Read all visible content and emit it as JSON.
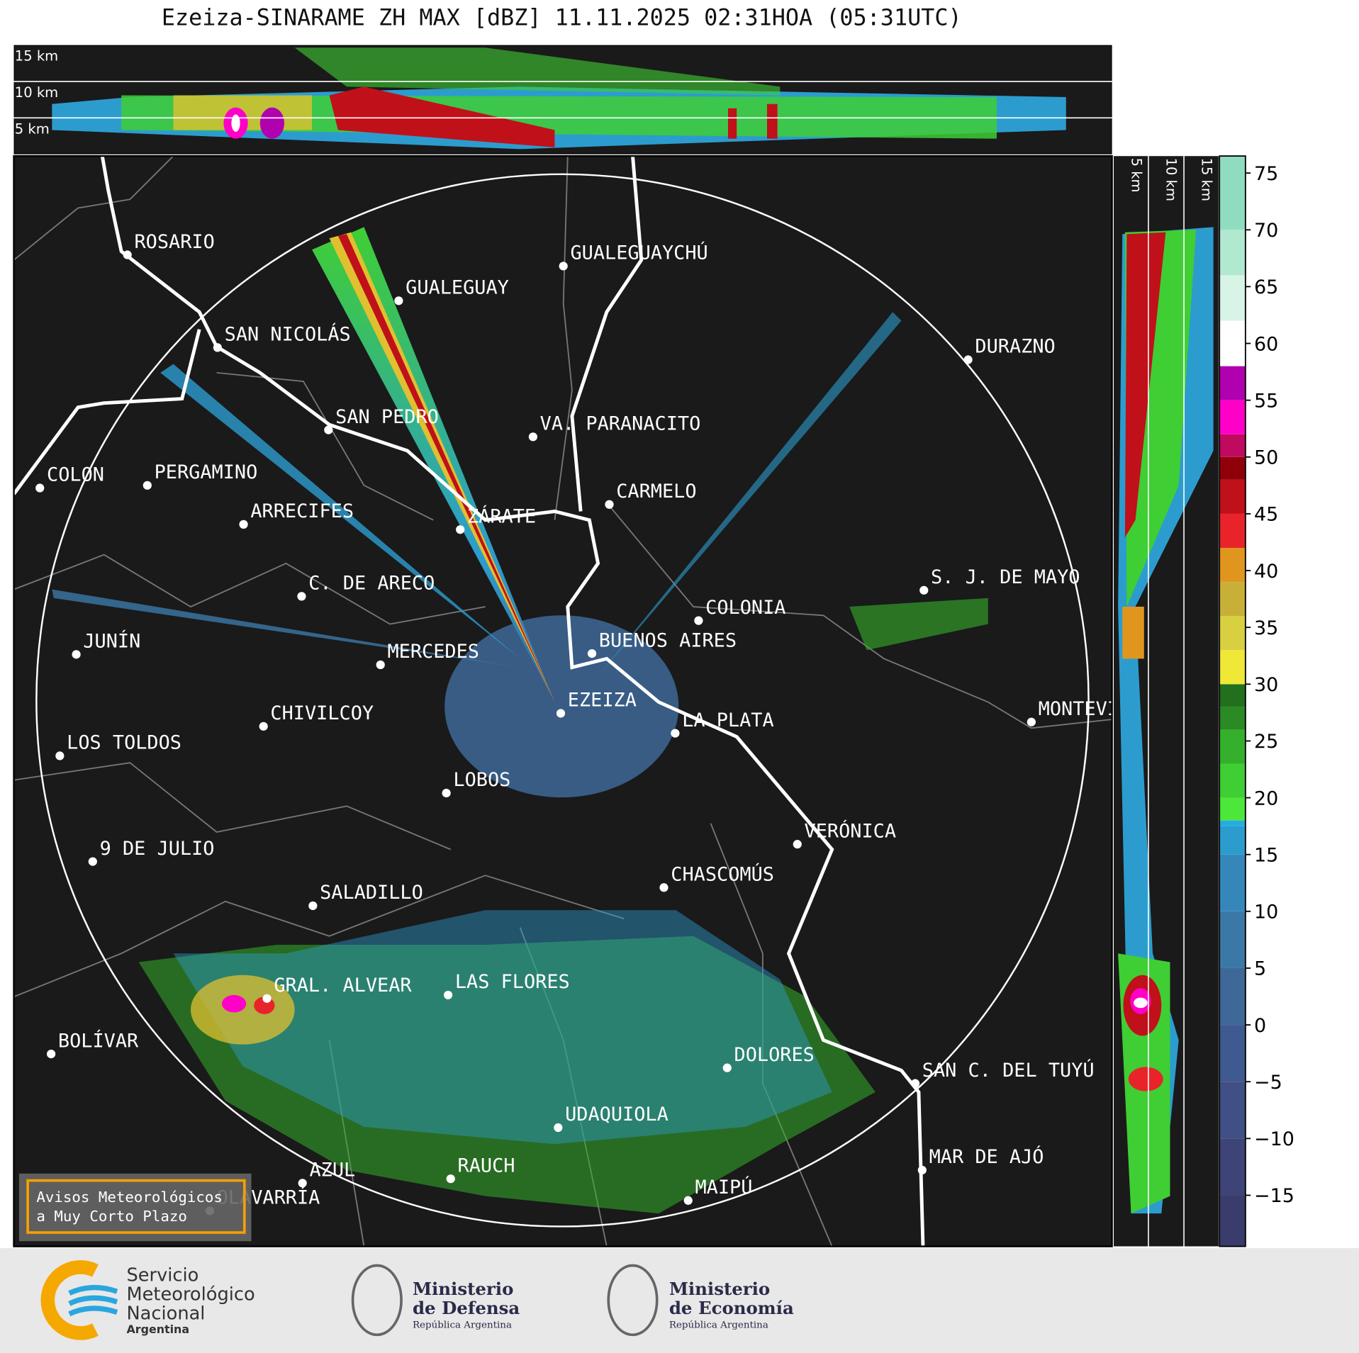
{
  "header": {
    "title": "Ezeiza-SINARAME ZH MAX [dBZ] 11.11.2025 02:31HOA (05:31UTC)"
  },
  "map": {
    "cities": [
      "ROSARIO",
      "GUALEGUAYCHÚ",
      "GUALEGUAY",
      "SAN NICOLÁS",
      "DURAZNO",
      "SAN PEDRO",
      "VA. PARANACITO",
      "COLON",
      "PERGAMINO",
      "CARMELO",
      "ARRECIFES",
      "ZÁRATE",
      "S. J. DE MAYO",
      "C. DE ARECO",
      "COLONIA",
      "BUENOS AIRES",
      "JUNÍN",
      "MERCEDES",
      "EZEIZA",
      "MONTEVIDEO",
      "CHIVILCOY",
      "LA PLATA",
      "LOS TOLDOS",
      "LOBOS",
      "VERÓNICA",
      "9 DE JULIO",
      "CHASCOMÚS",
      "SALADILLO",
      "GRAL. ALVEAR",
      "LAS FLORES",
      "BOLÍVAR",
      "DOLORES",
      "SAN C. DEL TUYÚ",
      "UDAQUIOLA",
      "MAR DE AJÓ",
      "AZUL",
      "RAUCH",
      "OLAVARRÍA",
      "MAIPÚ"
    ]
  },
  "cross_sections": {
    "top_labels": [
      "15 km",
      "10 km",
      "5 km"
    ],
    "side_labels": [
      "5 km",
      "10 km",
      "15 km"
    ]
  },
  "colorbar": {
    "range": [
      -19.5,
      76.5
    ],
    "ticks": [
      {
        "value": -15,
        "label": "−15"
      },
      {
        "value": -10,
        "label": "−10"
      },
      {
        "value": -5,
        "label": "−5"
      },
      0,
      5,
      10,
      15,
      20,
      25,
      30,
      35,
      40,
      45,
      50,
      55,
      60,
      65,
      70,
      75
    ],
    "segments": [
      {
        "from": -19.5,
        "color": "#3a3d6b"
      },
      {
        "from": -15,
        "color": "#3e4478"
      },
      {
        "from": -10,
        "color": "#404f85"
      },
      {
        "from": -5,
        "color": "#3f5a90"
      },
      {
        "from": 0,
        "color": "#3e6898"
      },
      {
        "from": 5,
        "color": "#3b78a8"
      },
      {
        "from": 10,
        "color": "#3587ba"
      },
      {
        "from": 15,
        "color": "#2c9ccf"
      },
      {
        "from": 17.5,
        "color": "#23aee0"
      },
      {
        "from": 18,
        "color": "#4de63a"
      },
      {
        "from": 20,
        "color": "#3fce34"
      },
      {
        "from": 23,
        "color": "#35b02c"
      },
      {
        "from": 26,
        "color": "#2a8a24"
      },
      {
        "from": 28,
        "color": "#22701e"
      },
      {
        "from": 30,
        "color": "#f0e836"
      },
      {
        "from": 33,
        "color": "#d8d040"
      },
      {
        "from": 36,
        "color": "#c8b038"
      },
      {
        "from": 39,
        "color": "#e0961e"
      },
      {
        "from": 42,
        "color": "#e8242a"
      },
      {
        "from": 45,
        "color": "#c0101a"
      },
      {
        "from": 48,
        "color": "#900008"
      },
      {
        "from": 50,
        "color": "#c00a60"
      },
      {
        "from": 52,
        "color": "#ff00c8"
      },
      {
        "from": 55,
        "color": "#b000b0"
      },
      {
        "from": 58,
        "color": "#ffffff"
      },
      {
        "from": 62,
        "color": "#d8f4e6"
      },
      {
        "from": 66,
        "color": "#b0e8d0"
      },
      {
        "from": 70,
        "color": "#90dcc0"
      }
    ]
  },
  "notice": {
    "lines": [
      "Avisos Meteorológicos",
      "a Muy Corto Plazo"
    ]
  },
  "logos": [
    {
      "lines": [
        "Servicio",
        "Meteorológico",
        "Nacional",
        "Argentina"
      ]
    },
    {
      "lines": [
        "Ministerio",
        "de Defensa",
        "República Argentina"
      ]
    },
    {
      "lines": [
        "Ministerio",
        "de Economía",
        "República Argentina"
      ]
    }
  ]
}
